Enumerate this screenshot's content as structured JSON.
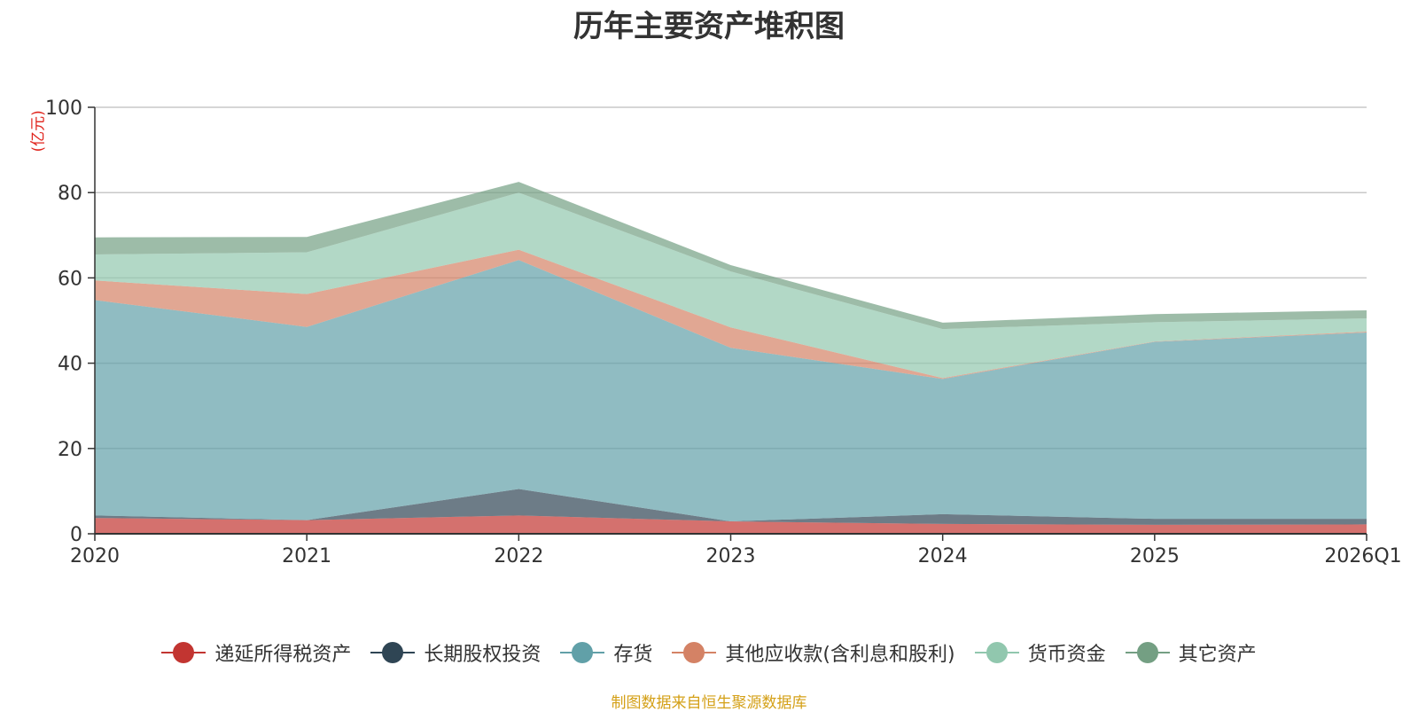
{
  "chart_data": {
    "type": "area",
    "stacked": true,
    "title": "历年主要资产堆积图",
    "unit": "(亿元)",
    "categories": [
      "2020",
      "2021",
      "2022",
      "2023",
      "2024",
      "2025",
      "2026Q1"
    ],
    "ylim": [
      0,
      100
    ],
    "yticks": [
      "0",
      "20",
      "40",
      "60",
      "80",
      "100"
    ],
    "grid": true,
    "legend_position": "bottom",
    "series": [
      {
        "name": "递延所得税资产",
        "color": "#c23531",
        "values": [
          3.7,
          3.2,
          4.3,
          2.9,
          2.3,
          2.1,
          2.2
        ]
      },
      {
        "name": "长期股权投资",
        "color": "#2f4554",
        "values": [
          0.6,
          0.0,
          6.2,
          0.0,
          2.3,
          1.4,
          1.3
        ]
      },
      {
        "name": "存货",
        "color": "#61a0a8",
        "values": [
          50.5,
          45.3,
          53.7,
          40.7,
          31.7,
          41.5,
          43.7
        ]
      },
      {
        "name": "其他应收款(含利息和股利)",
        "color": "#d48265",
        "values": [
          4.6,
          7.7,
          2.4,
          4.8,
          0.2,
          0.1,
          0.2
        ]
      },
      {
        "name": "货币资金",
        "color": "#91c7ae",
        "values": [
          6.1,
          9.8,
          13.4,
          13.1,
          11.5,
          4.5,
          3.1
        ]
      },
      {
        "name": "其它资产",
        "color": "#749f83",
        "values": [
          4.0,
          3.6,
          2.5,
          1.5,
          1.5,
          1.9,
          1.9
        ]
      }
    ]
  },
  "footer": {
    "source": "制图数据来自恒生聚源数据库"
  }
}
